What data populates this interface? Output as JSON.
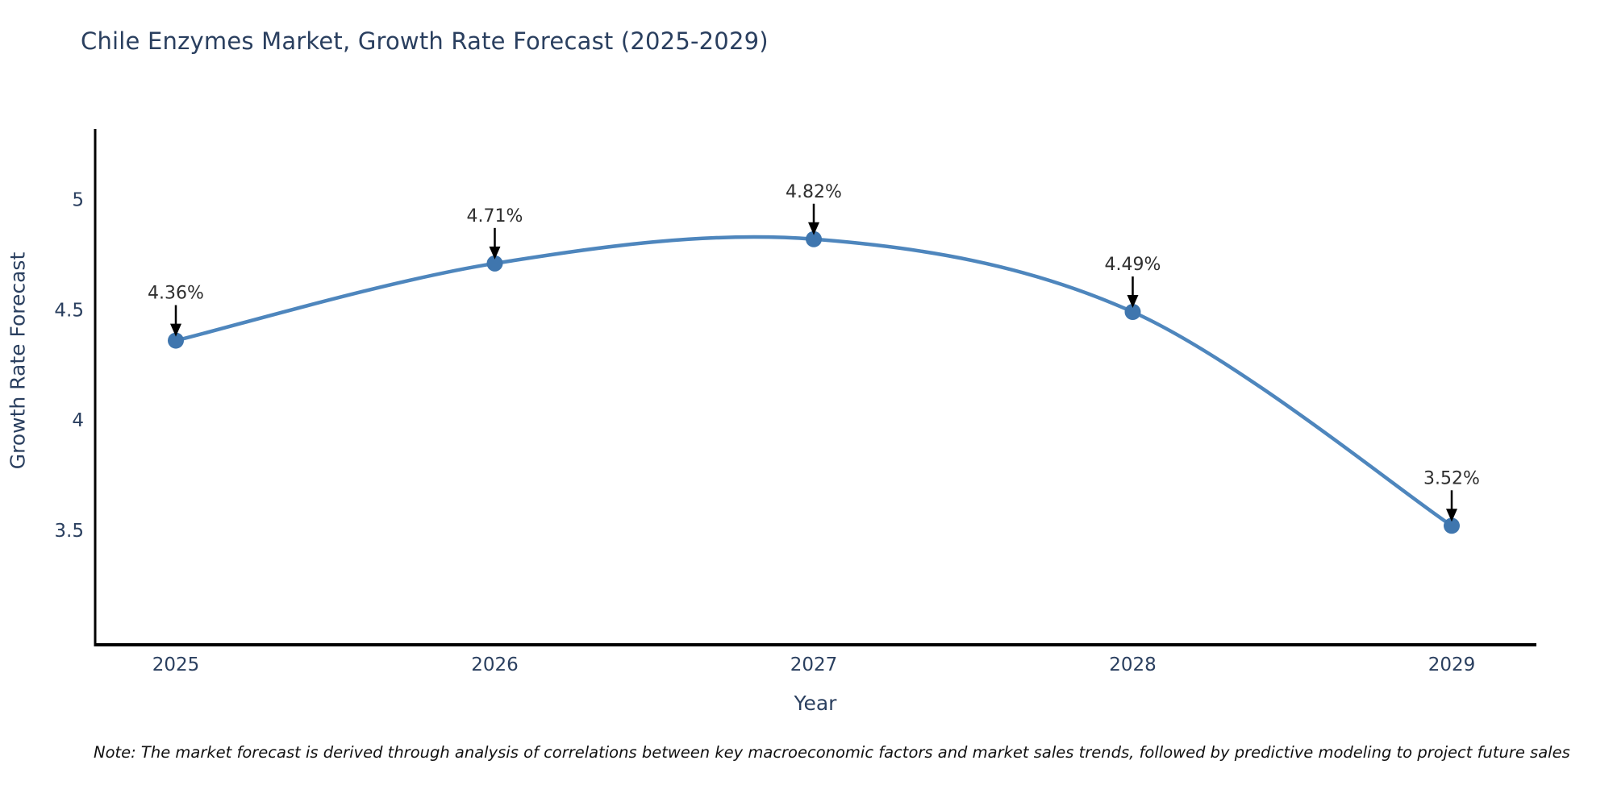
{
  "title": "Chile Enzymes Market, Growth Rate Forecast (2025-2029)",
  "note": "Note: The market forecast is derived through analysis of correlations between key macroeconomic factors and market sales trends, followed by predictive modeling to project future sales",
  "chart_data": {
    "type": "line",
    "line_shape": "spline",
    "title": "Chile Enzymes Market, Growth Rate Forecast (2025-2029)",
    "xlabel": "Year",
    "ylabel": "Growth Rate Forecast",
    "x": [
      2025,
      2026,
      2027,
      2028,
      2029
    ],
    "values": [
      4.36,
      4.71,
      4.82,
      4.49,
      3.52
    ],
    "point_labels": [
      "4.36%",
      "4.71%",
      "4.82%",
      "4.49%",
      "3.52%"
    ],
    "xticks": [
      "2025",
      "2026",
      "2027",
      "2028",
      "2029"
    ],
    "yticks": [
      3.5,
      4,
      4.5,
      5
    ],
    "ylim": [
      2.98,
      5.32
    ],
    "grid": false,
    "legend": "none",
    "colors": {
      "line": "#4e86bd",
      "marker": "#3f76ae",
      "axis": "#000000",
      "tick_label": "#2a3f5f",
      "annotation_text": "#2f2f2f",
      "arrow": "#000000",
      "title": "#2a3f5f"
    }
  }
}
